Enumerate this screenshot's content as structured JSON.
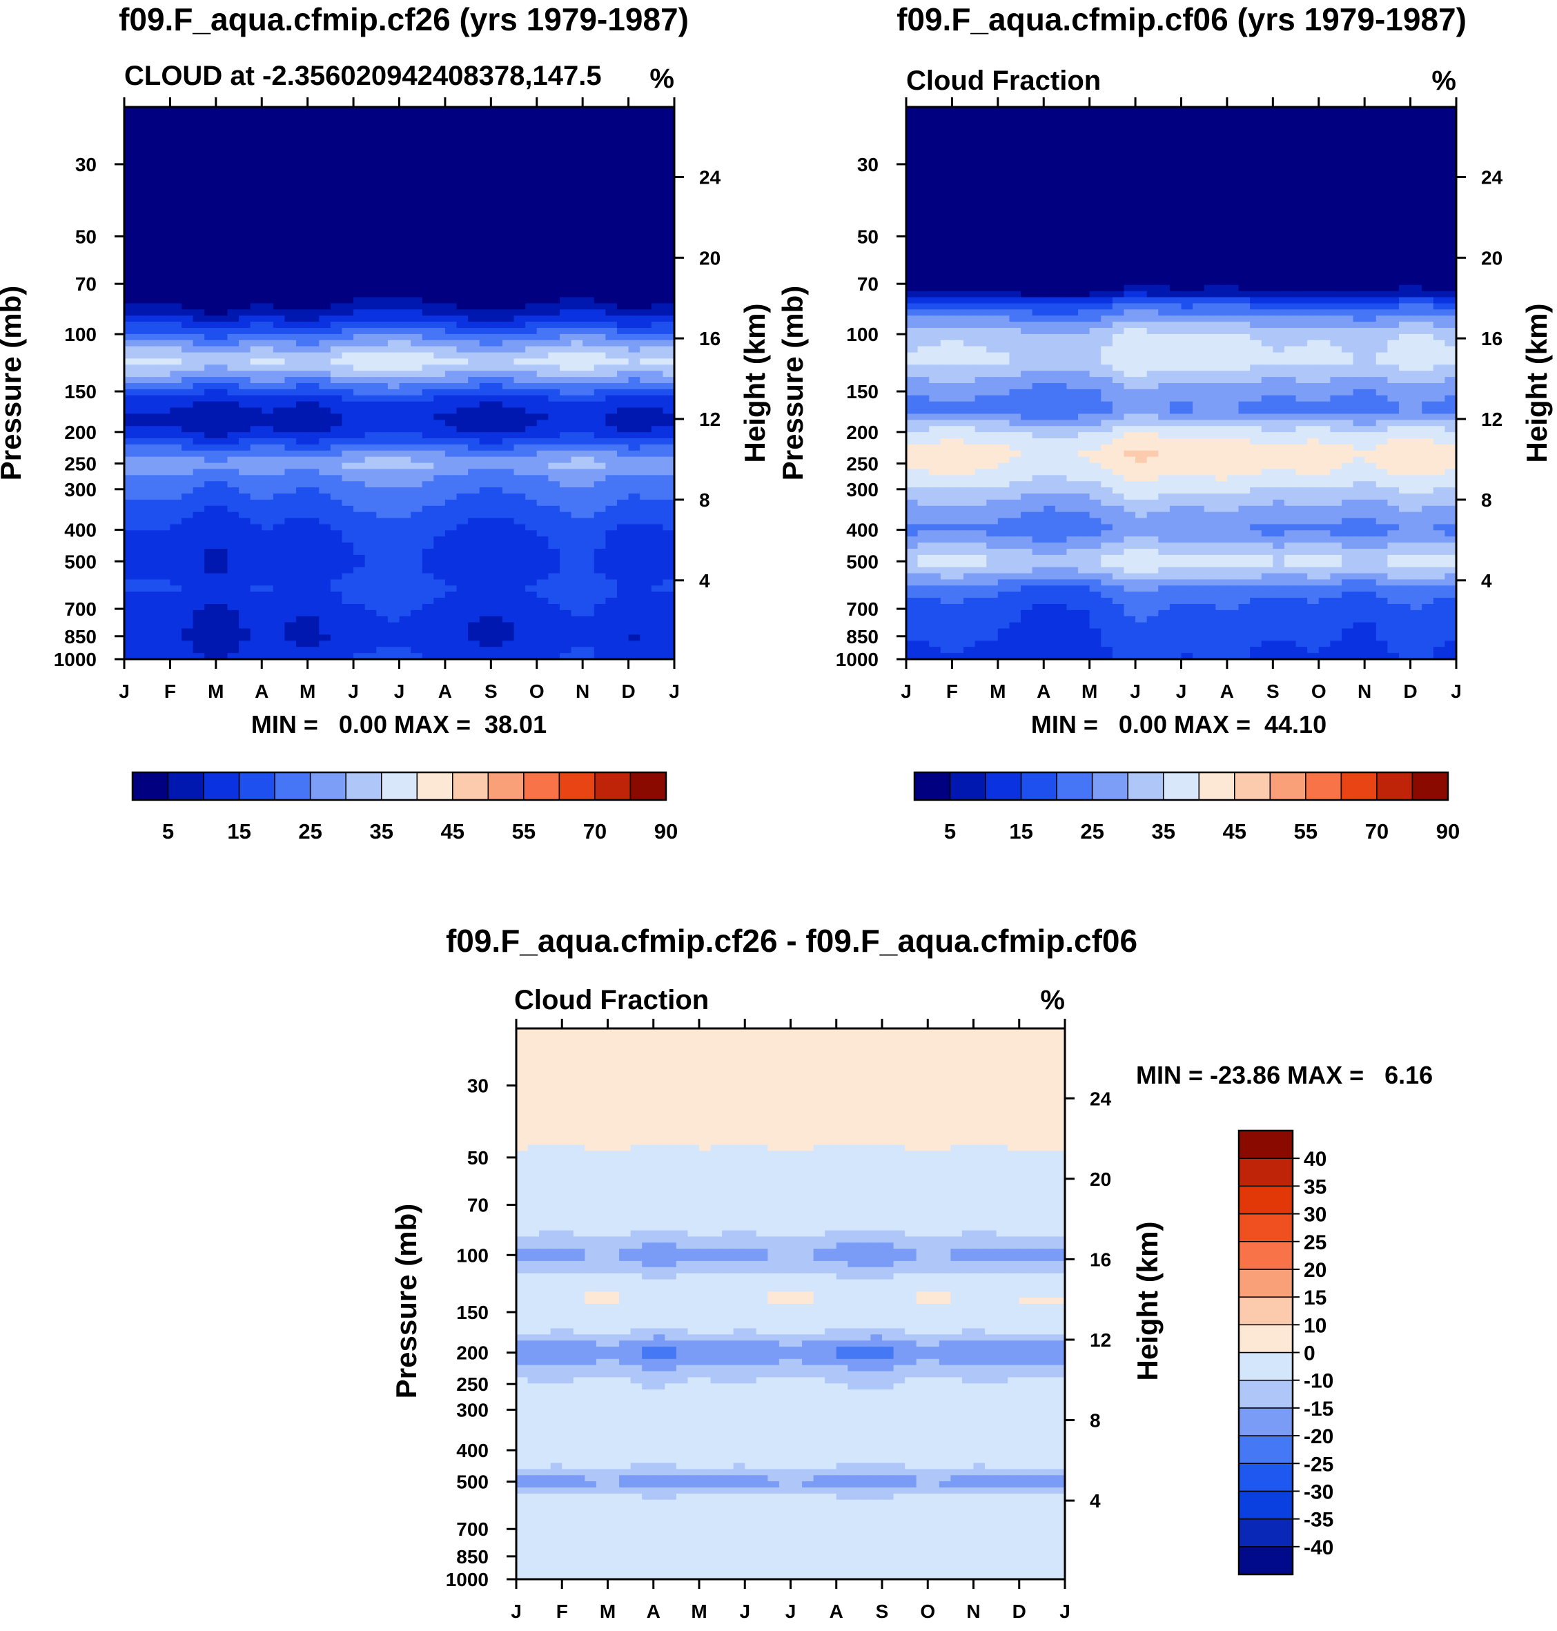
{
  "colors": {
    "abs_palette": [
      "#000080",
      "#0018b0",
      "#0a32e0",
      "#1e50f0",
      "#4676f5",
      "#7c9ef7",
      "#aec6f8",
      "#d8e8fa",
      "#fde8d6",
      "#fccaac",
      "#f9a078",
      "#f87448",
      "#e84414",
      "#c02408",
      "#8a0a00"
    ],
    "diff_palette": [
      "#000a8a",
      "#0a28b8",
      "#0a40e0",
      "#1e58f0",
      "#4478f4",
      "#7a9cf6",
      "#aec6f8",
      "#d4e6fb",
      "#fde8d6",
      "#fccaac",
      "#f9a078",
      "#f87448",
      "#f05020",
      "#e23808",
      "#c02408",
      "#8a0a00"
    ]
  },
  "chart_data": [
    {
      "type": "heatmap",
      "suptitle": "f09.F_aqua.cfmip.cf26 (yrs 1979-1987)",
      "left_title": "CLOUD at -2.356020942408378,147.5",
      "units": "%",
      "ylabel": "Pressure (mb)",
      "ylabel2": "Height (km)",
      "x_ticks": [
        "J",
        "F",
        "M",
        "A",
        "M",
        "J",
        "J",
        "A",
        "S",
        "O",
        "N",
        "D",
        "J"
      ],
      "p_ticks": [
        30,
        50,
        70,
        100,
        150,
        200,
        250,
        300,
        400,
        500,
        700,
        850,
        1000
      ],
      "p_range": [
        20,
        1000
      ],
      "h_ticks": [
        4,
        8,
        12,
        16,
        20,
        24
      ],
      "min_max_text": "MIN =   0.00 MAX =  38.01",
      "levels": [
        5,
        10,
        15,
        20,
        25,
        30,
        35,
        40,
        45,
        50,
        55,
        60,
        70,
        80,
        90
      ],
      "colorbar_labels": [
        "5",
        "15",
        "25",
        "35",
        "45",
        "55",
        "70",
        "90"
      ],
      "profile_pressure": [
        20,
        30,
        50,
        70,
        80,
        90,
        100,
        110,
        120,
        130,
        145,
        160,
        180,
        200,
        230,
        250,
        280,
        330,
        400,
        500,
        550,
        600,
        700,
        850,
        1000
      ],
      "profile_value": [
        0,
        0,
        0,
        0,
        4,
        12,
        22,
        30,
        37,
        32,
        22,
        13,
        9,
        11,
        24,
        30,
        24,
        20,
        15,
        13,
        14,
        16,
        13,
        11,
        14
      ],
      "monthly_offset": [
        0,
        0,
        -3,
        0,
        -2,
        1,
        2,
        0,
        -2,
        0,
        2,
        -1,
        0
      ]
    },
    {
      "type": "heatmap",
      "suptitle": "f09.F_aqua.cfmip.cf06 (yrs 1979-1987)",
      "left_title": "Cloud Fraction",
      "units": "%",
      "ylabel": "Pressure (mb)",
      "ylabel2": "Height (km)",
      "x_ticks": [
        "J",
        "F",
        "M",
        "A",
        "M",
        "J",
        "J",
        "A",
        "S",
        "O",
        "N",
        "D",
        "J"
      ],
      "p_ticks": [
        30,
        50,
        70,
        100,
        150,
        200,
        250,
        300,
        400,
        500,
        700,
        850,
        1000
      ],
      "p_range": [
        20,
        1000
      ],
      "h_ticks": [
        4,
        8,
        12,
        16,
        20,
        24
      ],
      "min_max_text": "MIN =   0.00 MAX =  44.10",
      "levels": [
        5,
        10,
        15,
        20,
        25,
        30,
        35,
        40,
        45,
        50,
        55,
        60,
        70,
        80,
        90
      ],
      "colorbar_labels": [
        "5",
        "15",
        "25",
        "35",
        "45",
        "55",
        "70",
        "90"
      ],
      "profile_pressure": [
        20,
        30,
        50,
        70,
        75,
        80,
        90,
        100,
        120,
        145,
        170,
        200,
        230,
        260,
        300,
        350,
        400,
        450,
        500,
        550,
        600,
        700,
        850,
        1000
      ],
      "profile_value": [
        0,
        0,
        0,
        0,
        6,
        16,
        26,
        33,
        36,
        27,
        22,
        36,
        42,
        40,
        34,
        27,
        23,
        30,
        36,
        30,
        22,
        17,
        15,
        13
      ],
      "monthly_offset": [
        0,
        1,
        0,
        -2,
        -1,
        3,
        1,
        2,
        0,
        1,
        -1,
        2,
        0
      ]
    },
    {
      "type": "heatmap",
      "suptitle": "f09.F_aqua.cfmip.cf26 - f09.F_aqua.cfmip.cf06",
      "left_title": "Cloud Fraction",
      "units": "%",
      "ylabel": "Pressure (mb)",
      "ylabel2": "Height (km)",
      "x_ticks": [
        "J",
        "F",
        "M",
        "A",
        "M",
        "J",
        "J",
        "A",
        "S",
        "O",
        "N",
        "D",
        "J"
      ],
      "p_ticks": [
        30,
        50,
        70,
        100,
        150,
        200,
        250,
        300,
        400,
        500,
        700,
        850,
        1000
      ],
      "p_range": [
        20,
        1000
      ],
      "h_ticks": [
        4,
        8,
        12,
        16,
        20,
        24
      ],
      "min_max_text": "MIN = -23.86 MAX =   6.16",
      "levels": [
        -40,
        -35,
        -30,
        -25,
        -20,
        -15,
        -10,
        0,
        10,
        15,
        20,
        25,
        30,
        35,
        40
      ],
      "colorbar_labels": [
        "40",
        "35",
        "30",
        "25",
        "20",
        "15",
        "10",
        "0",
        "-10",
        "-15",
        "-20",
        "-25",
        "-30",
        "-35",
        "-40"
      ],
      "profile_pressure": [
        20,
        45,
        50,
        60,
        80,
        90,
        100,
        110,
        125,
        135,
        150,
        170,
        185,
        200,
        215,
        240,
        270,
        300,
        400,
        450,
        500,
        560,
        700,
        1000
      ],
      "profile_value": [
        2,
        2,
        -3,
        -3,
        -5,
        -12,
        -16,
        -12,
        -4,
        1,
        -3,
        -8,
        -15,
        -20,
        -15,
        -10,
        -6,
        -4,
        -4,
        -9,
        -17,
        -8,
        -3,
        -3
      ],
      "monthly_offset": [
        0,
        -1,
        1,
        -2,
        0,
        -1,
        1,
        -1,
        -2,
        1,
        -1,
        0,
        0
      ]
    }
  ]
}
